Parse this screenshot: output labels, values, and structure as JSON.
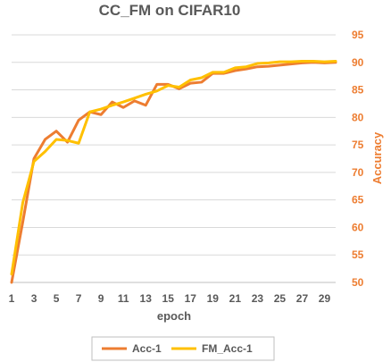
{
  "chart_data": {
    "type": "line",
    "title": "CC_FM on CIFAR10",
    "xlabel": "epoch",
    "ylabel": "Accuracy",
    "x": [
      1,
      2,
      3,
      4,
      5,
      6,
      7,
      8,
      9,
      10,
      11,
      12,
      13,
      14,
      15,
      16,
      17,
      18,
      19,
      20,
      21,
      22,
      23,
      24,
      25,
      26,
      27,
      28,
      29,
      30
    ],
    "x_tick_labels": [
      "1",
      "3",
      "5",
      "7",
      "9",
      "11",
      "13",
      "15",
      "17",
      "19",
      "21",
      "23",
      "25",
      "27",
      "29"
    ],
    "y_ticks": [
      50,
      55,
      60,
      65,
      70,
      75,
      80,
      85,
      90,
      95
    ],
    "ylim": [
      50,
      95
    ],
    "y_axis_position": "right",
    "grid": true,
    "legend_position": "bottom",
    "series": [
      {
        "name": "Acc-1",
        "color": "#ED7D31",
        "values": [
          50.0,
          61.0,
          72.5,
          76.0,
          77.5,
          75.5,
          79.5,
          81.0,
          80.5,
          82.8,
          81.8,
          83.0,
          82.2,
          86.0,
          86.0,
          85.2,
          86.2,
          86.4,
          88.0,
          88.0,
          88.5,
          88.8,
          89.2,
          89.3,
          89.5,
          89.7,
          89.9,
          90.0,
          89.9,
          90.0
        ]
      },
      {
        "name": "FM_Acc-1",
        "color": "#FFC000",
        "values": [
          51.5,
          64.5,
          72.0,
          73.8,
          76.0,
          75.8,
          75.3,
          81.0,
          81.5,
          82.2,
          82.8,
          83.5,
          84.2,
          84.8,
          85.8,
          85.5,
          86.8,
          87.2,
          88.2,
          88.2,
          89.0,
          89.2,
          89.8,
          89.9,
          90.1,
          90.1,
          90.2,
          90.2,
          90.1,
          90.2
        ]
      }
    ],
    "colors": {
      "text_dark": "#595959",
      "y_axis_text": "#ED7D31",
      "grid": "#d9d9d9"
    }
  }
}
